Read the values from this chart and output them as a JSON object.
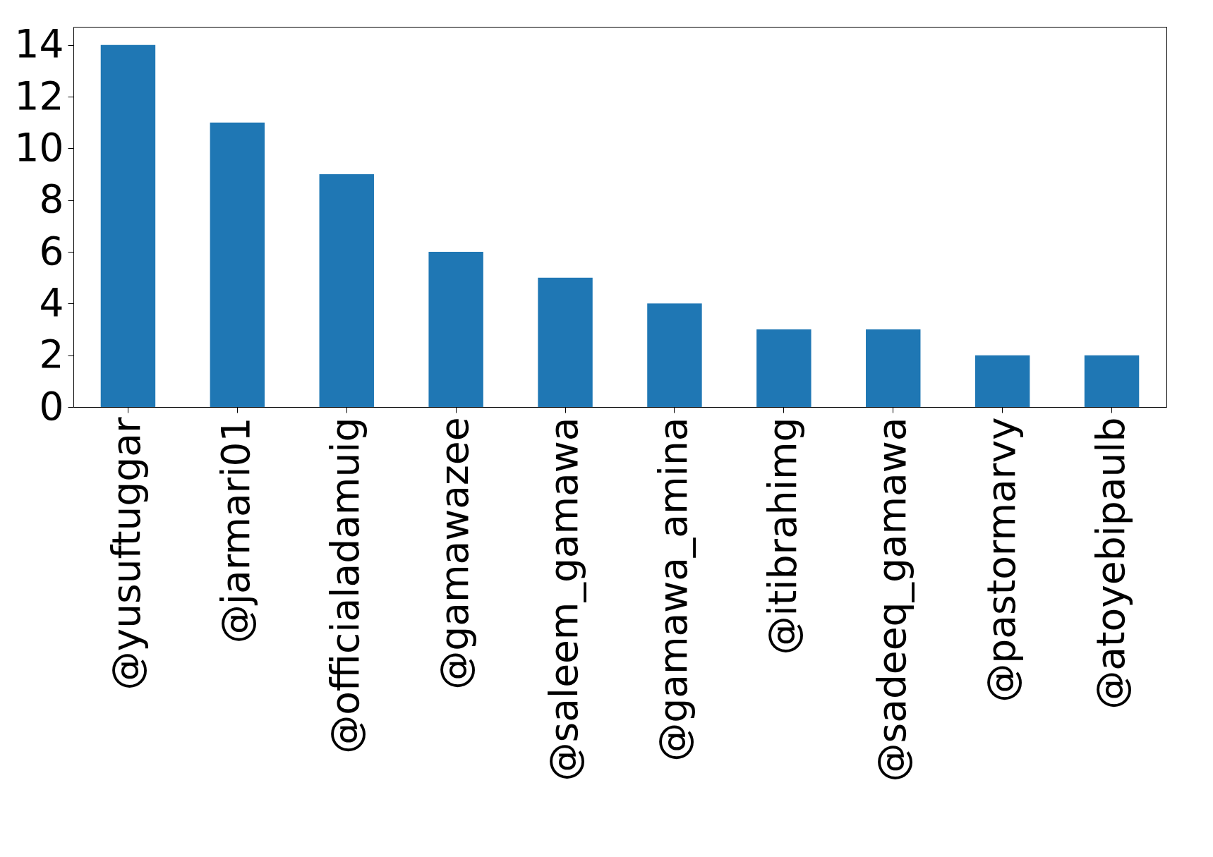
{
  "chart_data": {
    "type": "bar",
    "categories": [
      "@yusuftuggar",
      "@jarmari01",
      "@officialadamuig",
      "@gamawazee",
      "@saleem_gamawa",
      "@gamawa_amina",
      "@itibrahimg",
      "@sadeeq_gamawa",
      "@pastormarvy",
      "@atoyebipaulb"
    ],
    "values": [
      14,
      11,
      9,
      6,
      5,
      4,
      3,
      3,
      2,
      2
    ],
    "color": "#1f77b4",
    "ylim": [
      0,
      14.7
    ],
    "yticks": [
      0,
      2,
      4,
      6,
      8,
      10,
      12,
      14
    ],
    "grid": false
  }
}
